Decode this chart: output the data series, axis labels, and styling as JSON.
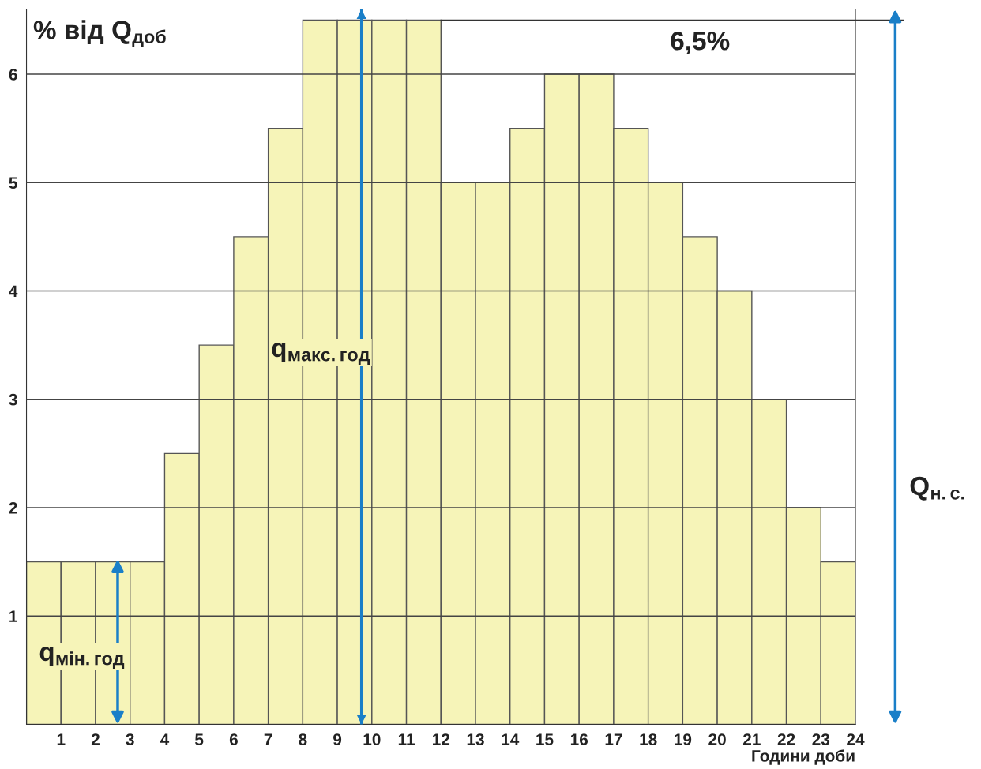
{
  "chart_data": {
    "type": "histogram",
    "xlabel": "Години доби",
    "ylabel": "% від Q$_{доб}$",
    "bins": [
      0,
      1,
      2,
      3,
      4,
      5,
      6,
      7,
      8,
      9,
      10,
      11,
      12,
      13,
      14,
      15,
      16,
      17,
      18,
      19,
      20,
      21,
      22,
      23,
      24
    ],
    "values": [
      1.5,
      1.5,
      1.5,
      1.5,
      2.5,
      3.5,
      4.5,
      5.5,
      6.5,
      6.5,
      6.5,
      6.5,
      5,
      5,
      5.5,
      6,
      6,
      5.5,
      5,
      4.5,
      4,
      3,
      2,
      1.5
    ],
    "color": "#f6f4b8",
    "xlim": [
      0,
      24
    ],
    "xticks": [
      1,
      2,
      3,
      4,
      5,
      6,
      7,
      8,
      9,
      10,
      11,
      12,
      13,
      14,
      15,
      16,
      17,
      18,
      19,
      20,
      21,
      22,
      23,
      24
    ],
    "ylim": [
      0,
      6.6
    ],
    "yticks": [
      1,
      2,
      3,
      4,
      5,
      6
    ],
    "grid": "y",
    "ref_lines": [
      {
        "axis": "y",
        "value": 6.5,
        "label": "6,5%"
      },
      {
        "axis": "x",
        "value": 9.7,
        "color": "#1a7fc8"
      }
    ],
    "annotations": [
      "q$_{макс.год}$",
      "q$_{мін.год}$",
      "Q$_{н.с.}$"
    ]
  }
}
